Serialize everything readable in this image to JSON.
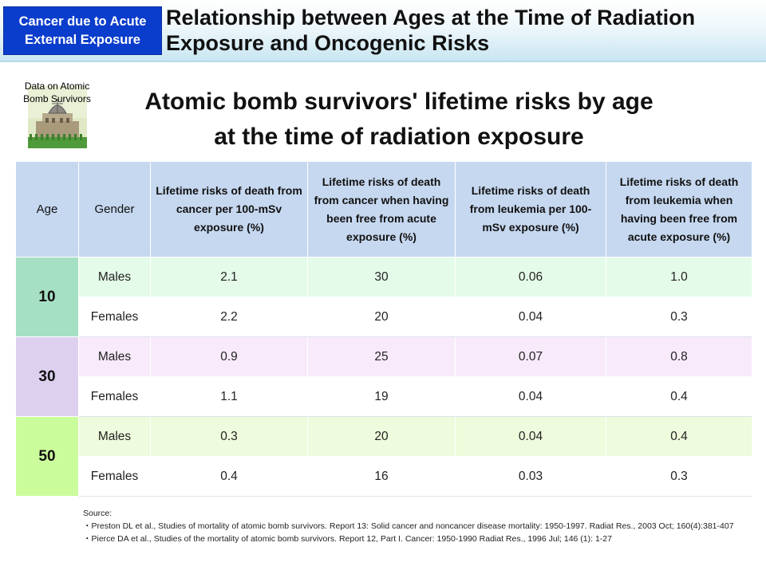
{
  "header": {
    "tag_line1": "Cancer due to Acute",
    "tag_line2": "External Exposure",
    "title_line1": "Relationship between Ages at the Time of Radiation",
    "title_line2": "Exposure and Oncogenic Risks"
  },
  "badge": {
    "line1": "Data on Atomic",
    "line2": "Bomb Survivors",
    "icon": "atomic-bomb-dome-icon"
  },
  "subtitle": {
    "line1": "Atomic bomb survivors' lifetime risks by age",
    "line2": "at the time of radiation exposure"
  },
  "table": {
    "headers": [
      "Age",
      "Gender",
      "Lifetime risks of death from cancer per 100-mSv exposure (%)",
      "Lifetime risks of death from cancer when having been free from acute exposure (%)",
      "Lifetime risks of death from leukemia per 100-mSv exposure (%)",
      "Lifetime risks of death from leukemia when having been free from acute exposure (%)"
    ],
    "groups": [
      {
        "age": "10",
        "rows": [
          {
            "gender": "Males",
            "values": [
              "2.1",
              "30",
              "0.06",
              "1.0"
            ]
          },
          {
            "gender": "Females",
            "values": [
              "2.2",
              "20",
              "0.04",
              "0.3"
            ]
          }
        ]
      },
      {
        "age": "30",
        "rows": [
          {
            "gender": "Males",
            "values": [
              "0.9",
              "25",
              "0.07",
              "0.8"
            ]
          },
          {
            "gender": "Females",
            "values": [
              "1.1",
              "19",
              "0.04",
              "0.4"
            ]
          }
        ]
      },
      {
        "age": "50",
        "rows": [
          {
            "gender": "Males",
            "values": [
              "0.3",
              "20",
              "0.04",
              "0.4"
            ]
          },
          {
            "gender": "Females",
            "values": [
              "0.4",
              "16",
              "0.03",
              "0.3"
            ]
          }
        ]
      }
    ]
  },
  "source": {
    "label": "Source:",
    "ref1": "・Preston DL et al., Studies of mortality of atomic bomb survivors. Report 13: Solid cancer and noncancer disease mortality: 1950-1997. Radiat Res., 2003 Oct; 160(4):381-407",
    "ref2": "・Pierce DA et al., Studies of the mortality of atomic bomb survivors. Report 12, Part I. Cancer: 1950-1990 Radiat Res., 1996 Jul; 146 (1): 1-27"
  },
  "colors": {
    "tag_bg": "#0b3dcc",
    "header_cell_bg": "#c6d8f0",
    "age10": "#a6e0c4",
    "age30": "#ddd0ee",
    "age50": "#cbfc9c"
  }
}
